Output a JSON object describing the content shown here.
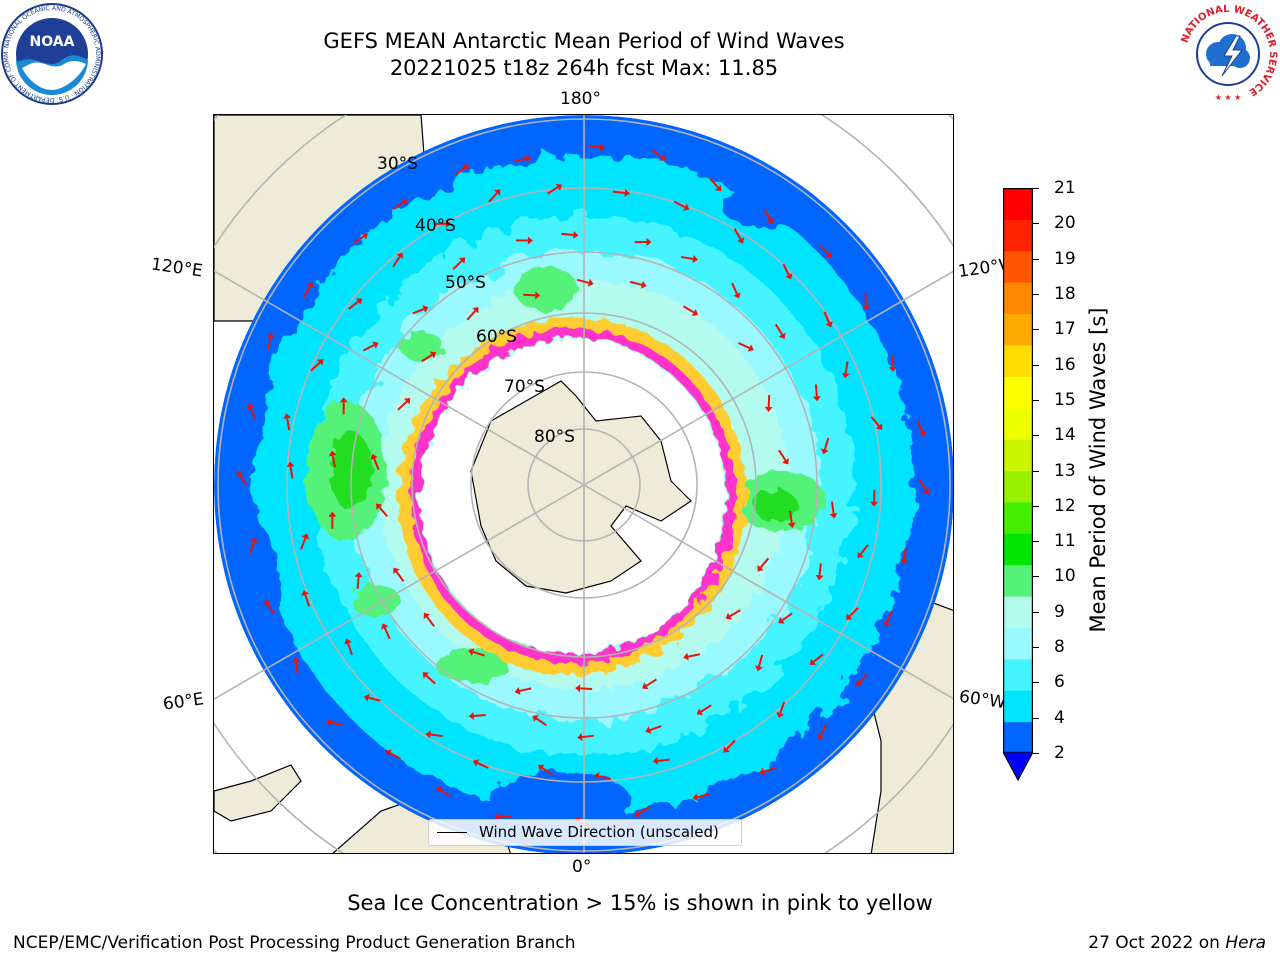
{
  "header": {
    "title_line1": "GEFS MEAN Antarctic Mean Period of Wind Waves",
    "title_line2": "20221025 t18z 264h fcst   Max: 11.85"
  },
  "logos": {
    "noaa_text": "NOAA",
    "noaa_ring_text": "NATIONAL OCEANIC AND ATMOSPHERIC ADMINISTRATION · U.S. DEPARTMENT OF COMMERCE",
    "nws_ring_text": "NATIONAL WEATHER SERVICE"
  },
  "map": {
    "projection": "south-polar-stereographic",
    "lon_labels": {
      "top": "180°",
      "bottom": "0°",
      "left_upper": "120°E",
      "left_lower": "60°E",
      "right_upper": "120°W",
      "right_lower": "60°W"
    },
    "lat_labels": [
      "30°S",
      "40°S",
      "50°S",
      "60°S",
      "70°S",
      "80°S"
    ],
    "legend_label": "Wind Wave Direction (unscaled)",
    "colors": {
      "land": "#eeecd9",
      "ice_pink": "#ff33cc",
      "arrow": "#e8140c",
      "grid": "#b4b4b4"
    }
  },
  "colorbar": {
    "label": "Mean Period of Wind Waves [s]",
    "ticks": [
      "21",
      "20",
      "19",
      "18",
      "17",
      "16",
      "15",
      "14",
      "13",
      "12",
      "11",
      "10",
      "9",
      "8",
      "6",
      "4",
      "2"
    ],
    "colors_bottom_to_top": [
      "#0066ff",
      "#00e5ff",
      "#44f4ff",
      "#99f9ff",
      "#b3fbee",
      "#55f27a",
      "#00e600",
      "#44ee00",
      "#99f000",
      "#ccf500",
      "#eeff00",
      "#ffff00",
      "#ffdd00",
      "#ffaa00",
      "#ff8800",
      "#ff5500",
      "#ff2200",
      "#ff0000"
    ],
    "under_color": "#0000ff"
  },
  "footer": {
    "caption": "Sea Ice Concentration > 15% is shown in pink to yellow",
    "left": "NCEP/EMC/Verification Post Processing Product Generation Branch",
    "right_prefix": "27 Oct 2022 on ",
    "right_machine": "Hera"
  }
}
